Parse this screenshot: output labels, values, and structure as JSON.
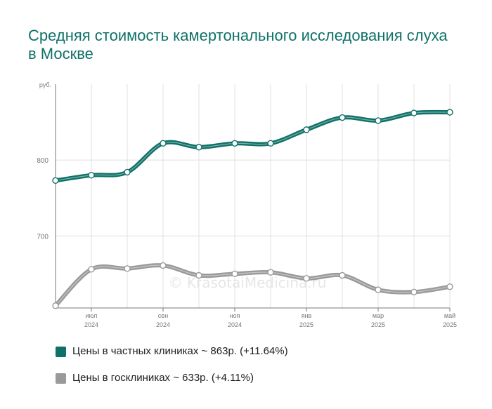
{
  "chart_data": {
    "type": "line",
    "title": "Средняя стоимость камертонального исследования слуха в Москве",
    "ylabel": "руб.",
    "ylim": [
      605,
      900
    ],
    "yticks": [
      {
        "value": 800,
        "label": "800"
      },
      {
        "value": 700,
        "label": "700"
      }
    ],
    "x": [
      0,
      1,
      2,
      3,
      4,
      5,
      6,
      7,
      8,
      9,
      10,
      11
    ],
    "xticks": [
      {
        "x": 1,
        "month": "июл",
        "year": "2024"
      },
      {
        "x": 3,
        "month": "сен",
        "year": "2024"
      },
      {
        "x": 5,
        "month": "ноя",
        "year": "2024"
      },
      {
        "x": 7,
        "month": "янв",
        "year": "2025"
      },
      {
        "x": 9,
        "month": "мар",
        "year": "2025"
      },
      {
        "x": 11,
        "month": "май",
        "year": "2025"
      }
    ],
    "grid": true,
    "legend_position": "bottom",
    "series": [
      {
        "name": "Цены в частных клиниках ~ 863р. (+11.64%)",
        "color": "#0f7168",
        "values": [
          773,
          780,
          784,
          822,
          817,
          822,
          822,
          840,
          856,
          852,
          862,
          863
        ]
      },
      {
        "name": "Цены в госклиниках ~ 633р. (+4.11%)",
        "color": "#9a9a9a",
        "values": [
          608,
          656,
          657,
          661,
          648,
          650,
          652,
          644,
          648,
          629,
          626,
          633
        ]
      }
    ],
    "watermark": "© KrasotaiMedicina.ru"
  }
}
